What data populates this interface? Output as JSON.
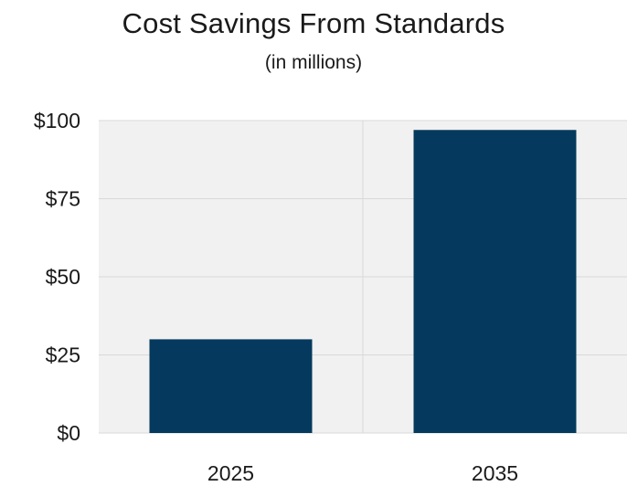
{
  "chart_data": {
    "type": "bar",
    "title": "Cost Savings From Standards",
    "subtitle": "(in millions)",
    "categories": [
      "2025",
      "2035"
    ],
    "values": [
      30,
      97
    ],
    "ylim": [
      0,
      100
    ],
    "yticks": [
      0,
      25,
      50,
      75,
      100
    ],
    "ytick_labels": [
      "$0",
      "$25",
      "$50",
      "$75",
      "$100"
    ],
    "xlabel": "",
    "ylabel": "",
    "grid": true,
    "legend": "none",
    "colors": {
      "bar": "#053a5e",
      "plot_background": "#f1f1f1",
      "gridline": "#d9d9d9"
    }
  }
}
